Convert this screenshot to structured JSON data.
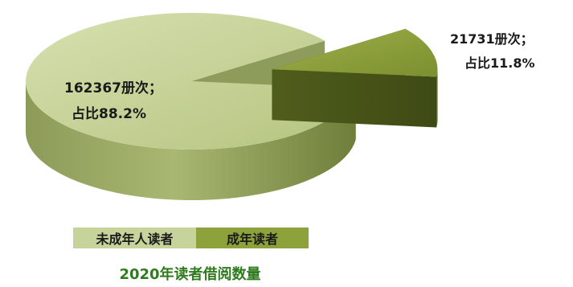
{
  "chart_data": {
    "type": "pie",
    "title": "2020年读者借阅数量",
    "style": "3d-exploded",
    "slices": [
      {
        "name": "未成年人读者",
        "value": 162367,
        "percent": 88.2,
        "label_line1": "162367册次；",
        "label_line2": "占比88.2%",
        "color": "#c6d39a"
      },
      {
        "name": "成年读者",
        "value": 21731,
        "percent": 11.8,
        "label_line1": "21731册次；",
        "label_line2": "占比11.8%",
        "color": "#8ea23c"
      }
    ],
    "legend_position": "bottom-center"
  }
}
